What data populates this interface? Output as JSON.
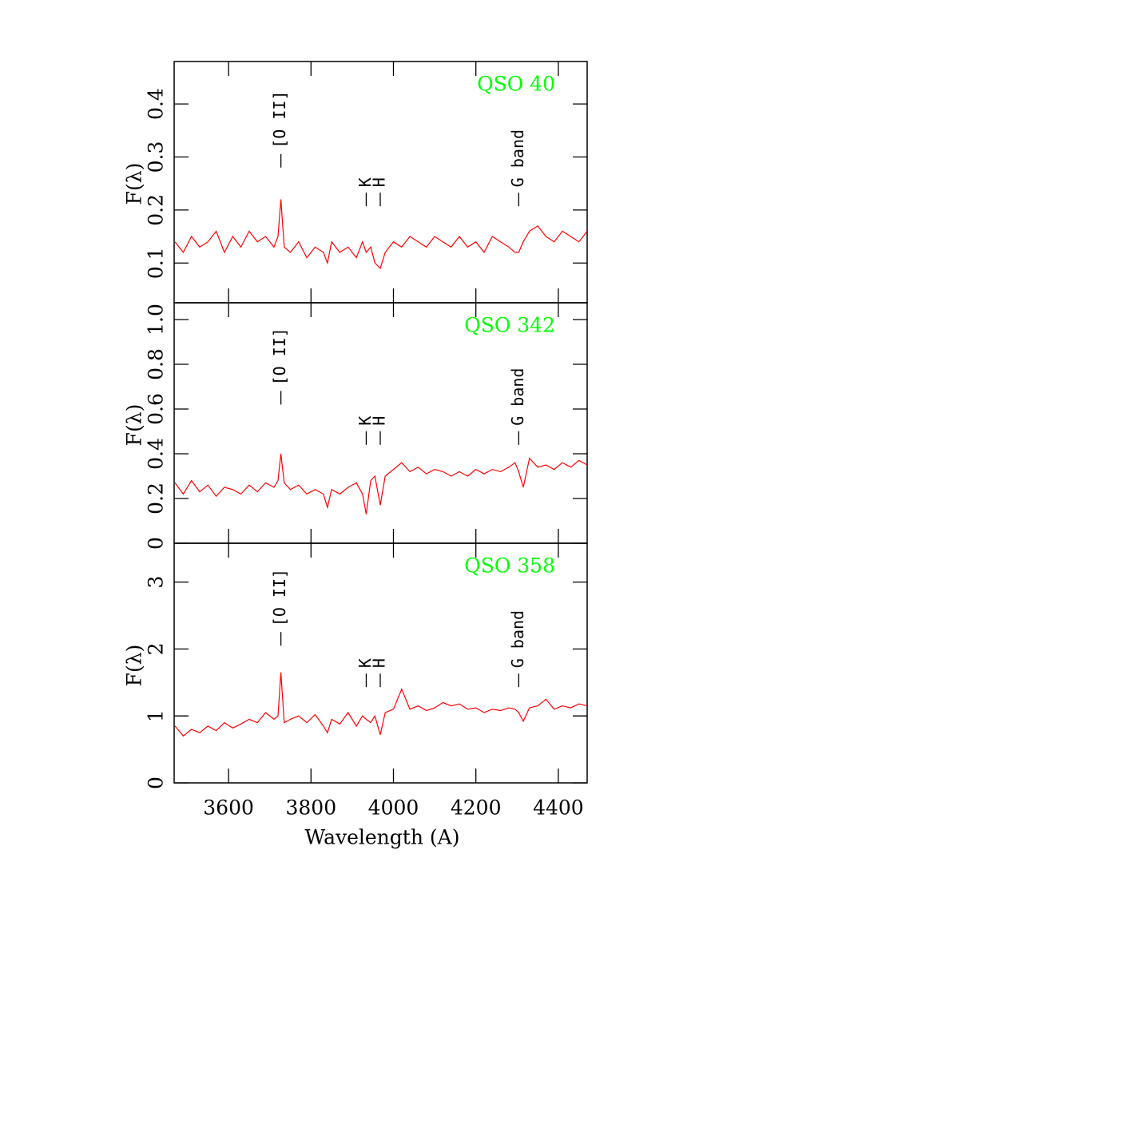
{
  "chart_data": [
    {
      "type": "line",
      "title": "QSO 40",
      "ylabel": "F(λ)",
      "xlim": [
        3468,
        4470
      ],
      "xticks": [
        3600,
        3800,
        4000,
        4200,
        4400
      ],
      "ylim": [
        0.025,
        0.48
      ],
      "yticks": [
        0.1,
        0.2,
        0.3,
        0.4
      ],
      "title_color": "#00ff00",
      "annotations": [
        {
          "text": "[O II]",
          "x": 3727,
          "y": 0.28
        },
        {
          "text": "K",
          "x": 3934,
          "y": 0.207
        },
        {
          "text": "H",
          "x": 3968,
          "y": 0.207
        },
        {
          "text": "G band",
          "x": 4304,
          "y": 0.207
        }
      ],
      "series": [
        {
          "color": "#ff0000",
          "x": [
            3470,
            3490,
            3510,
            3530,
            3550,
            3570,
            3590,
            3610,
            3630,
            3650,
            3670,
            3690,
            3710,
            3720,
            3727,
            3735,
            3750,
            3770,
            3790,
            3810,
            3830,
            3840,
            3850,
            3870,
            3890,
            3910,
            3925,
            3934,
            3945,
            3955,
            3968,
            3980,
            4000,
            4020,
            4040,
            4060,
            4080,
            4100,
            4120,
            4140,
            4160,
            4180,
            4200,
            4220,
            4240,
            4260,
            4280,
            4295,
            4304,
            4315,
            4330,
            4350,
            4370,
            4390,
            4410,
            4430,
            4450,
            4470
          ],
          "values": [
            0.14,
            0.12,
            0.15,
            0.13,
            0.14,
            0.16,
            0.12,
            0.15,
            0.13,
            0.16,
            0.14,
            0.15,
            0.13,
            0.15,
            0.22,
            0.13,
            0.12,
            0.14,
            0.11,
            0.13,
            0.12,
            0.1,
            0.14,
            0.12,
            0.13,
            0.11,
            0.14,
            0.12,
            0.13,
            0.1,
            0.09,
            0.12,
            0.14,
            0.13,
            0.15,
            0.14,
            0.13,
            0.15,
            0.14,
            0.13,
            0.15,
            0.13,
            0.14,
            0.12,
            0.15,
            0.14,
            0.13,
            0.12,
            0.12,
            0.14,
            0.16,
            0.17,
            0.15,
            0.14,
            0.16,
            0.15,
            0.14,
            0.16
          ]
        }
      ]
    },
    {
      "type": "line",
      "title": "QSO 342",
      "ylabel": "F(λ)",
      "xlim": [
        3468,
        4470
      ],
      "xticks": [
        3600,
        3800,
        4000,
        4200,
        4400
      ],
      "ylim": [
        0,
        1.075
      ],
      "yticks": [
        0,
        0.2,
        0.4,
        0.6,
        0.8,
        {
          "value": 1.0,
          "label": "1.0"
        }
      ],
      "title_color": "#00ff00",
      "annotations": [
        {
          "text": "[O II]",
          "x": 3727,
          "y": 0.62
        },
        {
          "text": "K",
          "x": 3934,
          "y": 0.44
        },
        {
          "text": "H",
          "x": 3968,
          "y": 0.44
        },
        {
          "text": "G band",
          "x": 4304,
          "y": 0.44
        }
      ],
      "series": [
        {
          "color": "#ff0000",
          "x": [
            3470,
            3490,
            3510,
            3530,
            3550,
            3570,
            3590,
            3610,
            3630,
            3650,
            3670,
            3690,
            3710,
            3720,
            3727,
            3735,
            3750,
            3770,
            3790,
            3810,
            3830,
            3840,
            3850,
            3870,
            3890,
            3910,
            3925,
            3934,
            3945,
            3955,
            3968,
            3980,
            4000,
            4020,
            4040,
            4060,
            4080,
            4100,
            4120,
            4140,
            4160,
            4180,
            4200,
            4220,
            4240,
            4260,
            4280,
            4295,
            4304,
            4315,
            4330,
            4350,
            4370,
            4390,
            4410,
            4430,
            4450,
            4470
          ],
          "values": [
            0.27,
            0.22,
            0.28,
            0.23,
            0.26,
            0.21,
            0.25,
            0.24,
            0.22,
            0.26,
            0.23,
            0.27,
            0.25,
            0.28,
            0.4,
            0.27,
            0.24,
            0.26,
            0.22,
            0.24,
            0.22,
            0.16,
            0.24,
            0.22,
            0.25,
            0.27,
            0.22,
            0.13,
            0.28,
            0.3,
            0.17,
            0.3,
            0.33,
            0.36,
            0.32,
            0.34,
            0.31,
            0.33,
            0.32,
            0.3,
            0.32,
            0.3,
            0.33,
            0.31,
            0.33,
            0.32,
            0.34,
            0.36,
            0.32,
            0.25,
            0.38,
            0.34,
            0.35,
            0.33,
            0.36,
            0.34,
            0.37,
            0.35
          ]
        }
      ]
    },
    {
      "type": "line",
      "title": "QSO 358",
      "ylabel": "F(λ)",
      "xlabel": "Wavelength (A)",
      "xlim": [
        3468,
        4470
      ],
      "xticks": [
        3600,
        3800,
        4000,
        4200,
        4400
      ],
      "ylim": [
        0,
        3.58
      ],
      "yticks": [
        0,
        1,
        2,
        3
      ],
      "title_color": "#00ff00",
      "annotations": [
        {
          "text": "[O II]",
          "x": 3727,
          "y": 2.05
        },
        {
          "text": "K",
          "x": 3934,
          "y": 1.43
        },
        {
          "text": "H",
          "x": 3968,
          "y": 1.43
        },
        {
          "text": "G band",
          "x": 4304,
          "y": 1.43
        }
      ],
      "series": [
        {
          "color": "#ff0000",
          "x": [
            3470,
            3490,
            3510,
            3530,
            3550,
            3570,
            3590,
            3610,
            3630,
            3650,
            3670,
            3690,
            3710,
            3720,
            3727,
            3735,
            3750,
            3770,
            3790,
            3810,
            3830,
            3840,
            3850,
            3870,
            3890,
            3910,
            3925,
            3934,
            3945,
            3955,
            3968,
            3980,
            4000,
            4020,
            4040,
            4060,
            4080,
            4100,
            4120,
            4140,
            4160,
            4180,
            4200,
            4220,
            4240,
            4260,
            4280,
            4295,
            4304,
            4315,
            4330,
            4350,
            4370,
            4390,
            4410,
            4430,
            4450,
            4470
          ],
          "values": [
            0.85,
            0.7,
            0.8,
            0.75,
            0.85,
            0.78,
            0.9,
            0.82,
            0.88,
            0.95,
            0.9,
            1.05,
            0.95,
            1.0,
            1.65,
            0.9,
            0.95,
            1.0,
            0.9,
            1.02,
            0.85,
            0.75,
            0.95,
            0.88,
            1.05,
            0.85,
            1.0,
            0.95,
            0.9,
            1.0,
            0.72,
            1.05,
            1.1,
            1.4,
            1.1,
            1.15,
            1.08,
            1.12,
            1.2,
            1.15,
            1.18,
            1.1,
            1.12,
            1.05,
            1.1,
            1.08,
            1.12,
            1.1,
            1.05,
            0.92,
            1.12,
            1.15,
            1.25,
            1.1,
            1.15,
            1.12,
            1.18,
            1.15
          ]
        }
      ]
    }
  ]
}
